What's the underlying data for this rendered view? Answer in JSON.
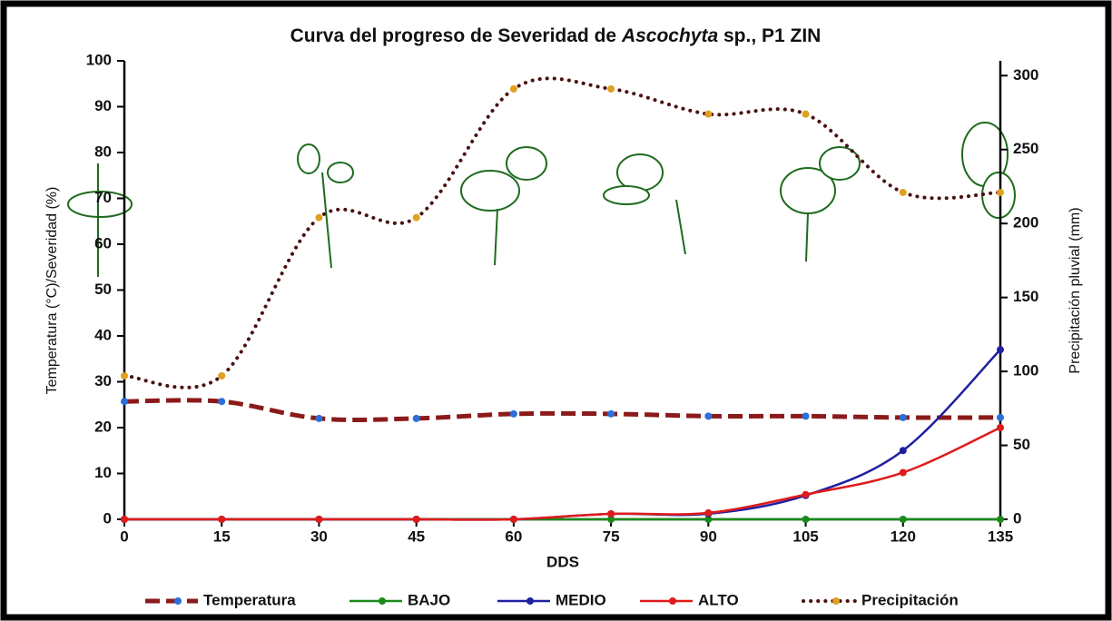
{
  "chart_data": {
    "type": "line",
    "title": {
      "before": "Curva del progreso de Severidad de ",
      "italic": "Ascochyta",
      "after": " sp., P1 ZIN"
    },
    "x_label": "DDS",
    "y_label": "Temperatura (°C)/Severidad (%)",
    "y2_label": "Precipitación pluvial (mm)",
    "x": [
      0,
      15,
      30,
      45,
      60,
      75,
      90,
      105,
      120,
      135
    ],
    "xlim": [
      0,
      135
    ],
    "xticks": [
      0,
      15,
      30,
      45,
      60,
      75,
      90,
      105,
      120,
      135
    ],
    "ylim": [
      0,
      100
    ],
    "yticks": [
      0,
      10,
      20,
      30,
      40,
      50,
      60,
      70,
      80,
      90,
      100
    ],
    "y2lim": [
      0,
      310
    ],
    "y2ticks": [
      0,
      50,
      100,
      150,
      200,
      250,
      300
    ],
    "series": [
      {
        "name": "Temperatura",
        "color": "#8b1a1a",
        "marker_color": "#2a6fdb",
        "style": "dashed",
        "values": [
          25.7,
          25.7,
          22,
          22,
          23,
          23,
          22.5,
          22.5,
          22.2,
          22.2
        ]
      },
      {
        "name": "BAJO",
        "color": "#1a8a1a",
        "marker_color": "#1a8a1a",
        "style": "solid",
        "values": [
          0,
          0,
          0,
          0,
          0,
          0,
          0,
          0,
          0,
          0
        ]
      },
      {
        "name": "MEDIO",
        "color": "#1f1fa0",
        "marker_color": "#1f1fa0",
        "style": "solid",
        "values": [
          0,
          0,
          0,
          0,
          0,
          1.2,
          1.2,
          5.2,
          15,
          37
        ]
      },
      {
        "name": "ALTO",
        "color": "#e01b1b",
        "marker_color": "#e01b1b",
        "style": "solid",
        "values": [
          0,
          0,
          0,
          0,
          0,
          1.2,
          1.4,
          5.4,
          10.2,
          20
        ]
      },
      {
        "name": "Precipitación",
        "color": "#4a1010",
        "marker_color": "#e0a020",
        "style": "dotted",
        "axis": "y2",
        "values": [
          97,
          97,
          204,
          204,
          291,
          291,
          274,
          274,
          221,
          221
        ]
      }
    ]
  }
}
